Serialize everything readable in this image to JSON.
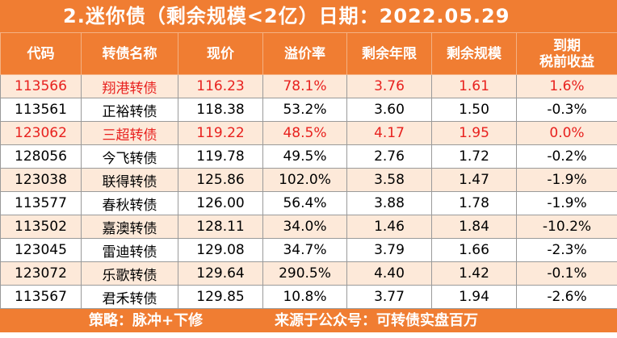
{
  "title": "2.迷你债（剩余规模<2亿）日期：2022.05.29",
  "colors": {
    "header_bg": "#f07d32",
    "header_text": "#ffffff",
    "stripe": "#fde9d9",
    "highlight_text": "#e8211e"
  },
  "columns": [
    "代码",
    "转债名称",
    "现价",
    "溢价率",
    "剩余年限",
    "剩余规模",
    "到期税前收益"
  ],
  "column_last_lines": [
    "到期",
    "税前收益"
  ],
  "rows": [
    {
      "code": "113566",
      "name": "翔港转债",
      "price": "116.23",
      "premium": "78.1%",
      "years": "3.76",
      "scale": "1.61",
      "ytm": "1.6%",
      "highlight": true
    },
    {
      "code": "113561",
      "name": "正裕转债",
      "price": "118.38",
      "premium": "53.2%",
      "years": "3.60",
      "scale": "1.50",
      "ytm": "-0.3%",
      "highlight": false
    },
    {
      "code": "123062",
      "name": "三超转债",
      "price": "119.22",
      "premium": "48.5%",
      "years": "4.17",
      "scale": "1.95",
      "ytm": "0.0%",
      "highlight": true
    },
    {
      "code": "128056",
      "name": "今飞转债",
      "price": "119.78",
      "premium": "49.5%",
      "years": "2.76",
      "scale": "1.72",
      "ytm": "-0.2%",
      "highlight": false
    },
    {
      "code": "123038",
      "name": "联得转债",
      "price": "125.86",
      "premium": "102.0%",
      "years": "3.58",
      "scale": "1.47",
      "ytm": "-1.9%",
      "highlight": false
    },
    {
      "code": "113577",
      "name": "春秋转债",
      "price": "126.00",
      "premium": "56.4%",
      "years": "3.88",
      "scale": "1.78",
      "ytm": "-1.9%",
      "highlight": false
    },
    {
      "code": "113502",
      "name": "嘉澳转债",
      "price": "128.11",
      "premium": "34.0%",
      "years": "1.46",
      "scale": "1.84",
      "ytm": "-10.2%",
      "highlight": false
    },
    {
      "code": "123045",
      "name": "雷迪转债",
      "price": "129.08",
      "premium": "34.7%",
      "years": "3.79",
      "scale": "1.66",
      "ytm": "-2.3%",
      "highlight": false
    },
    {
      "code": "123072",
      "name": "乐歌转债",
      "price": "129.64",
      "premium": "290.5%",
      "years": "4.40",
      "scale": "1.42",
      "ytm": "-0.1%",
      "highlight": false
    },
    {
      "code": "113567",
      "name": "君禾转债",
      "price": "129.85",
      "premium": "10.8%",
      "years": "3.77",
      "scale": "1.94",
      "ytm": "-2.6%",
      "highlight": false
    }
  ],
  "footer": {
    "strategy": "策略：脉冲+下修",
    "source": "来源于公众号：可转债实盘百万"
  }
}
